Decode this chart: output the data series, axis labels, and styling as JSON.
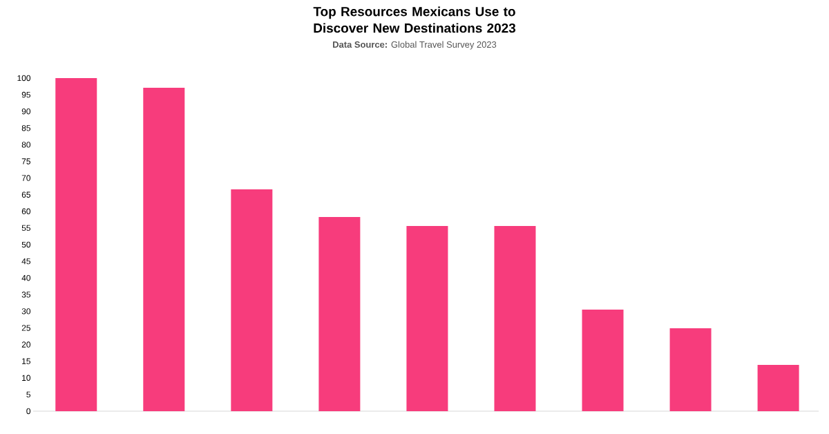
{
  "chart_data": {
    "type": "bar",
    "title": "Top Resources Mexicans Use to Discover New Destinations 2023",
    "subtitle": "**Data Source:** Global Travel Survey 2023",
    "categories": [
      null,
      null,
      null,
      null,
      null,
      null,
      null,
      null,
      null
    ],
    "values": [
      100,
      97.1,
      66.6,
      58.3,
      55.6,
      55.6,
      30.5,
      24.9,
      13.9
    ],
    "color": "#f73c7c",
    "ylim": [
      0,
      100
    ],
    "yticks": [
      0,
      5,
      10,
      15,
      20,
      25,
      30,
      35,
      40,
      45,
      50,
      55,
      60,
      65,
      70,
      75,
      80,
      85,
      90,
      95,
      100
    ],
    "tick_labels": "y"
  }
}
